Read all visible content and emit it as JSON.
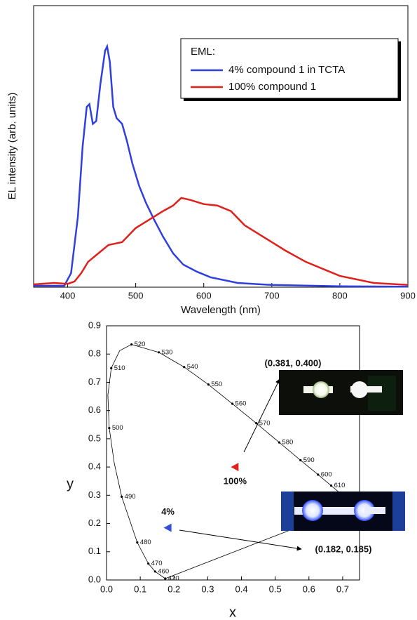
{
  "chart_data": [
    {
      "type": "line",
      "ylabel": "EL intensity (arb. units)",
      "xlabel": "Wavelength (nm)",
      "xlim": [
        350,
        900
      ],
      "ylim": [
        0,
        1
      ],
      "xticks": [
        400,
        500,
        600,
        700,
        800,
        900
      ],
      "legend_title": "EML:",
      "legend": "upper right",
      "series": [
        {
          "name": "4% compound 1 in TCTA",
          "color": "#2f3fe0",
          "x": [
            350,
            395,
            405,
            415,
            422,
            428,
            432,
            437,
            442,
            448,
            455,
            458,
            462,
            467,
            472,
            480,
            487,
            495,
            505,
            515,
            527,
            540,
            555,
            570,
            590,
            610,
            650,
            700,
            800,
            900
          ],
          "values": [
            0.005,
            0.005,
            0.05,
            0.25,
            0.5,
            0.64,
            0.65,
            0.58,
            0.59,
            0.72,
            0.84,
            0.855,
            0.8,
            0.64,
            0.6,
            0.58,
            0.52,
            0.44,
            0.36,
            0.3,
            0.24,
            0.18,
            0.12,
            0.08,
            0.055,
            0.035,
            0.015,
            0.008,
            0.003,
            0.002
          ]
        },
        {
          "name": "100% compound 1",
          "color": "#e0201a",
          "x": [
            350,
            380,
            400,
            410,
            420,
            430,
            440,
            460,
            480,
            500,
            520,
            540,
            555,
            567,
            580,
            600,
            620,
            640,
            660,
            680,
            700,
            720,
            750,
            780,
            800,
            850,
            900
          ],
          "values": [
            0.01,
            0.015,
            0.012,
            0.02,
            0.05,
            0.09,
            0.11,
            0.15,
            0.16,
            0.21,
            0.24,
            0.27,
            0.29,
            0.317,
            0.31,
            0.295,
            0.29,
            0.27,
            0.22,
            0.19,
            0.16,
            0.13,
            0.09,
            0.06,
            0.04,
            0.015,
            0.008
          ]
        }
      ]
    },
    {
      "type": "scatter",
      "xlabel": "x",
      "ylabel": "y",
      "xlim": [
        0,
        0.75
      ],
      "ylim": [
        0,
        0.9
      ],
      "xticks": [
        {
          "value": 0,
          "label": "0.0"
        },
        0.1,
        0.2,
        0.3,
        0.4,
        0.5,
        0.6,
        0.7
      ],
      "yticks": [
        {
          "value": 0,
          "label": "0.0"
        },
        0.1,
        0.2,
        0.3,
        0.4,
        0.5,
        0.6,
        0.7,
        0.8,
        0.9
      ],
      "series": [
        {
          "color": "#000000",
          "x": [
            0.174,
            0.144,
            0.124,
            0.091,
            0.045,
            0.023,
            0.008,
            0.004,
            0.014,
            0.039,
            0.074,
            0.155,
            0.23,
            0.302,
            0.373,
            0.444,
            0.512,
            0.575,
            0.627,
            0.666,
            0.726,
            0.735
          ],
          "values": [
            0.005,
            0.03,
            0.058,
            0.133,
            0.295,
            0.413,
            0.538,
            0.655,
            0.75,
            0.812,
            0.834,
            0.806,
            0.754,
            0.692,
            0.624,
            0.555,
            0.487,
            0.424,
            0.373,
            0.334,
            0.274,
            0.265
          ],
          "point_labels": [
            "420",
            "460",
            "470",
            "480",
            "490",
            null,
            "500",
            null,
            "510",
            null,
            "520",
            "530",
            "540",
            "550",
            "560",
            "570",
            "580",
            "590",
            "600",
            "610",
            null,
            null
          ]
        },
        {
          "color": "#e0201a",
          "x": [
            0.381
          ],
          "values": [
            0.4
          ],
          "point_labels": [
            "100%"
          ],
          "value_labels": [
            "(0.381, 0.400)"
          ]
        },
        {
          "color": "#2f4fe0",
          "x": [
            0.182
          ],
          "values": [
            0.185
          ],
          "point_labels": [
            "4%"
          ],
          "value_labels": [
            "(0.182, 0.185)"
          ]
        }
      ]
    }
  ]
}
